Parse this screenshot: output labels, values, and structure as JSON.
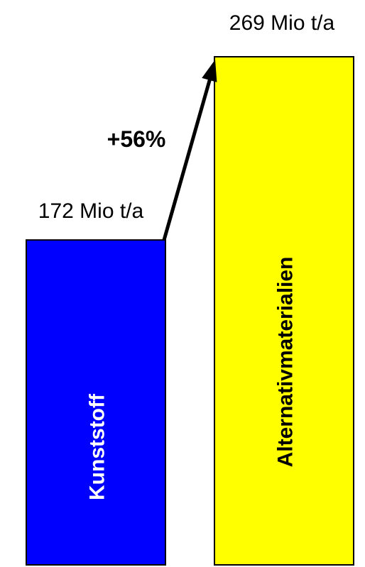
{
  "chart_data": {
    "type": "bar",
    "categories": [
      "Kunststoff",
      "Alternativmaterialien"
    ],
    "values": [
      172,
      269
    ],
    "value_labels": [
      "172 Mio t/a",
      "269 Mio t/a"
    ],
    "unit": "Mio t/a",
    "change_label": "+56%",
    "colors": [
      "#0000ff",
      "#ffff00"
    ],
    "label_colors": [
      "#ffffff",
      "#000000"
    ],
    "title": "",
    "xlabel": "",
    "ylabel": "",
    "ylim": [
      0,
      269
    ],
    "grid": false,
    "legend": "none"
  }
}
